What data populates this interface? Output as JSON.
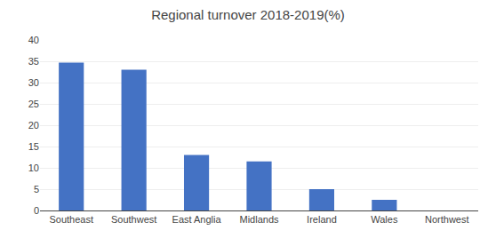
{
  "chart_data": {
    "type": "bar",
    "title": "Regional turnover 2018-2019(%)",
    "categories": [
      "Southeast",
      "Southwest",
      "East Anglia",
      "Midlands",
      "Ireland",
      "Wales",
      "Northwest"
    ],
    "values": [
      34.7,
      33.0,
      13.0,
      11.5,
      5.0,
      2.5,
      0.0
    ],
    "color": "#4472C4",
    "ylim": [
      0,
      40
    ],
    "yticks": [
      0,
      5,
      10,
      15,
      20,
      25,
      30,
      35,
      40
    ],
    "grid": true
  }
}
